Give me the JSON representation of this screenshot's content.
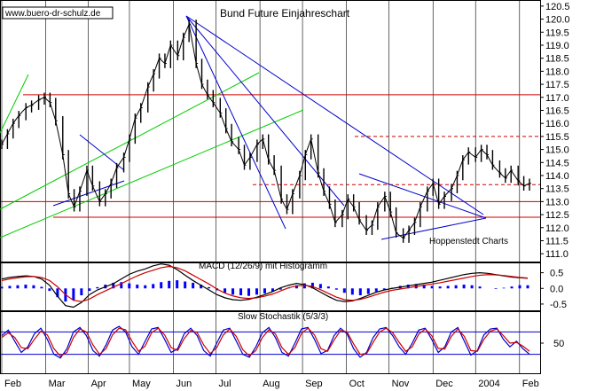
{
  "watermark": "www.buero-dr-schulz.de",
  "credit": "Hoppenstedt Charts",
  "colors": {
    "price": "#000000",
    "resistance": "#cc0000",
    "trendline": "#0000cc",
    "channel": "#00cc00",
    "macd_hist": "#0000ff",
    "macd_line": "#000000",
    "signal_line": "#cc0000",
    "stoch_k": "#0000cc",
    "stoch_d": "#cc0000"
  },
  "chart_data": [
    {
      "type": "line",
      "title": "Bund Future Einjahreschart",
      "xlabel": "",
      "ylabel": "",
      "ylim": [
        110.7,
        120.7
      ],
      "yticks": [
        111.0,
        111.5,
        112.0,
        112.5,
        113.0,
        113.5,
        114.0,
        114.5,
        115.0,
        115.5,
        116.0,
        116.5,
        117.0,
        117.5,
        118.0,
        118.5,
        119.0,
        119.5,
        120.0,
        120.5
      ],
      "months": [
        "Feb",
        "Mar",
        "Apr",
        "May",
        "Jun",
        "Jul",
        "Aug",
        "Sep",
        "Oct",
        "Nov",
        "Dec",
        "2004",
        "Feb"
      ],
      "x": [
        0,
        4,
        8,
        12,
        17,
        21,
        26,
        30,
        34,
        38,
        43,
        47,
        51,
        55,
        60,
        64,
        69,
        73,
        77,
        81,
        86,
        90,
        94,
        98,
        103,
        107,
        111,
        115,
        119,
        124,
        128,
        132,
        137,
        141,
        145,
        149,
        154,
        158,
        162,
        167,
        171,
        175,
        180,
        184,
        188,
        192,
        197,
        201,
        205,
        210,
        214,
        218,
        223,
        227,
        231,
        235,
        240,
        244,
        248,
        252,
        257,
        261,
        265,
        270,
        274,
        278,
        283,
        287,
        291,
        295,
        300,
        304,
        308,
        312,
        317,
        321,
        325,
        329,
        334,
        338,
        342,
        346,
        351,
        355,
        359,
        364,
        368,
        372
      ],
      "values": [
        115.2,
        115.6,
        116.0,
        116.3,
        116.6,
        116.7,
        116.9,
        117.0,
        116.8,
        116.1,
        114.8,
        113.3,
        112.8,
        113.4,
        114.2,
        113.6,
        113.0,
        113.3,
        113.7,
        114.3,
        114.7,
        115.4,
        116.2,
        116.6,
        117.4,
        117.9,
        118.5,
        118.3,
        119.0,
        118.6,
        119.3,
        119.8,
        118.3,
        117.5,
        117.1,
        116.8,
        116.4,
        115.8,
        115.3,
        115.0,
        114.4,
        114.7,
        115.2,
        115.4,
        114.6,
        114.2,
        113.1,
        112.7,
        113.3,
        114.0,
        114.8,
        115.4,
        114.1,
        113.4,
        112.9,
        112.2,
        112.5,
        113.1,
        112.8,
        112.3,
        111.9,
        112.1,
        112.8,
        113.2,
        112.6,
        111.8,
        111.6,
        111.9,
        112.2,
        112.8,
        113.4,
        113.7,
        112.9,
        113.2,
        113.5,
        114.0,
        114.6,
        114.9,
        114.7,
        115.0,
        114.8,
        114.4,
        114.1,
        113.9,
        114.2,
        113.8,
        113.6,
        113.7
      ],
      "resistance_levels": [
        117.1,
        113.0,
        112.4
      ],
      "dashed_levels": [
        115.5,
        113.65
      ]
    },
    {
      "type": "bar",
      "title": "MACD (12/26/9) mit Histogramm",
      "ylim": [
        -0.7,
        0.8
      ],
      "yticks": [
        -0.5,
        0.0,
        0.5
      ],
      "histogram": [
        0.05,
        0.08,
        0.1,
        0.12,
        0.1,
        0.05,
        -0.08,
        -0.28,
        -0.42,
        -0.38,
        -0.22,
        -0.08,
        0.04,
        0.12,
        0.18,
        0.2,
        0.16,
        0.12,
        0.1,
        0.14,
        0.2,
        0.24,
        0.26,
        0.22,
        0.18,
        0.12,
        0.04,
        -0.06,
        -0.14,
        -0.2,
        -0.22,
        -0.24,
        -0.2,
        -0.16,
        -0.1,
        -0.04,
        0.02,
        0.1,
        0.16,
        0.18,
        0.14,
        0.06,
        -0.04,
        -0.14,
        -0.2,
        -0.22,
        -0.18,
        -0.1,
        -0.04,
        0.02,
        0.08,
        0.12,
        0.14,
        0.12,
        0.08,
        0.06,
        0.08,
        0.1,
        0.12,
        0.1,
        0.06,
        0.0,
        -0.02,
        0.02,
        0.06,
        0.1,
        0.1
      ],
      "macd": [
        0.3,
        0.35,
        0.38,
        0.4,
        0.38,
        0.3,
        0.1,
        -0.25,
        -0.55,
        -0.6,
        -0.45,
        -0.2,
        -0.05,
        0.05,
        0.15,
        0.3,
        0.45,
        0.55,
        0.62,
        0.72,
        0.78,
        0.74,
        0.6,
        0.42,
        0.25,
        0.1,
        -0.05,
        -0.2,
        -0.3,
        -0.36,
        -0.38,
        -0.35,
        -0.28,
        -0.2,
        -0.1,
        0.02,
        0.1,
        0.16,
        0.12,
        0.02,
        -0.12,
        -0.26,
        -0.38,
        -0.42,
        -0.4,
        -0.32,
        -0.22,
        -0.12,
        -0.05,
        0.0,
        0.04,
        0.08,
        0.12,
        0.16,
        0.2,
        0.26,
        0.32,
        0.38,
        0.44,
        0.48,
        0.5,
        0.48,
        0.44,
        0.4,
        0.36,
        0.34,
        0.32
      ],
      "signal": [
        0.25,
        0.3,
        0.34,
        0.37,
        0.38,
        0.35,
        0.25,
        0.05,
        -0.2,
        -0.38,
        -0.42,
        -0.34,
        -0.2,
        -0.08,
        0.04,
        0.15,
        0.28,
        0.4,
        0.5,
        0.58,
        0.66,
        0.7,
        0.66,
        0.56,
        0.42,
        0.28,
        0.14,
        -0.02,
        -0.15,
        -0.24,
        -0.3,
        -0.32,
        -0.3,
        -0.25,
        -0.18,
        -0.08,
        0.02,
        0.08,
        0.1,
        0.06,
        -0.04,
        -0.16,
        -0.28,
        -0.36,
        -0.38,
        -0.35,
        -0.28,
        -0.2,
        -0.12,
        -0.06,
        -0.02,
        0.02,
        0.06,
        0.1,
        0.14,
        0.18,
        0.23,
        0.28,
        0.33,
        0.38,
        0.42,
        0.44,
        0.43,
        0.41,
        0.38,
        0.35,
        0.33
      ]
    },
    {
      "type": "line",
      "title": "Slow Stochastik (5/3/3)",
      "ylim": [
        0,
        100
      ],
      "yticks": [
        50
      ],
      "k": [
        70,
        85,
        55,
        25,
        40,
        75,
        90,
        60,
        20,
        10,
        35,
        80,
        92,
        70,
        30,
        15,
        45,
        85,
        95,
        80,
        40,
        20,
        55,
        88,
        92,
        60,
        25,
        35,
        75,
        90,
        70,
        30,
        15,
        50,
        85,
        90,
        55,
        20,
        12,
        40,
        78,
        92,
        65,
        25,
        15,
        50,
        88,
        92,
        60,
        22,
        30,
        70,
        90,
        75,
        35,
        12,
        25,
        65,
        88,
        92,
        70,
        40,
        20,
        50,
        85,
        90,
        60,
        25,
        40,
        80,
        92,
        55,
        18,
        30,
        72,
        88,
        90,
        60,
        40,
        55,
        35,
        20
      ],
      "d": [
        65,
        78,
        65,
        38,
        35,
        60,
        82,
        72,
        35,
        15,
        25,
        65,
        88,
        80,
        45,
        20,
        35,
        72,
        90,
        86,
        55,
        28,
        42,
        78,
        90,
        72,
        38,
        30,
        62,
        84,
        78,
        45,
        22,
        38,
        72,
        88,
        68,
        32,
        16,
        30,
        65,
        86,
        75,
        38,
        20,
        38,
        76,
        90,
        72,
        35,
        28,
        58,
        84,
        80,
        48,
        20,
        22,
        52,
        80,
        90,
        78,
        52,
        28,
        40,
        74,
        88,
        70,
        36,
        34,
        68,
        88,
        68,
        30,
        28,
        60,
        82,
        88,
        70,
        50,
        52,
        42,
        28
      ]
    }
  ]
}
